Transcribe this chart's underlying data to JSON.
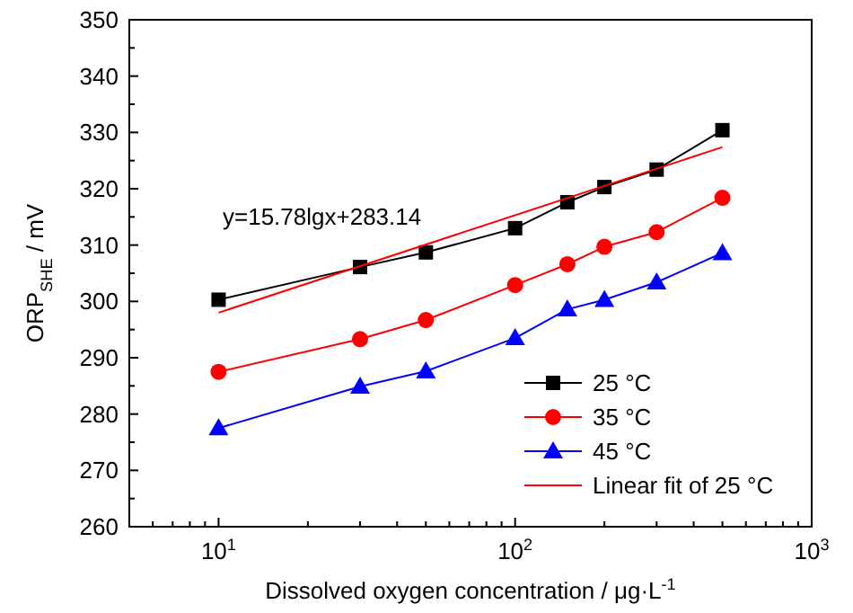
{
  "chart_data": {
    "type": "line",
    "xlabel": "Dissolved oxygen concentration / μg·L$^{-1}$",
    "ylabel": "ORP$_{SHE}$ / mV",
    "x": [
      10,
      30,
      50,
      100,
      150,
      200,
      300,
      500
    ],
    "series": [
      {
        "name": "25 °C",
        "color": "#000000",
        "marker": "square",
        "values": [
          300.3,
          306.1,
          308.7,
          313,
          317.6,
          320.3,
          323.4,
          330.4
        ]
      },
      {
        "name": "35 °C",
        "color": "#ff0000",
        "marker": "circle",
        "values": [
          287.5,
          293.3,
          296.7,
          302.9,
          306.6,
          309.7,
          312.3,
          318.4
        ]
      },
      {
        "name": "45 °C",
        "color": "#0000ff",
        "marker": "triangle",
        "values": [
          277.5,
          284.9,
          287.6,
          293.5,
          298.6,
          300.3,
          303.4,
          308.6
        ]
      },
      {
        "name": "Linear fit of 25 °C",
        "color": "#ff0000",
        "marker": "none",
        "x": [
          10,
          500
        ],
        "values": [
          298,
          327.4
        ]
      }
    ],
    "log": "x",
    "xlim": [
      5,
      1000
    ],
    "xticks": [
      {
        "value": 6,
        "label": null
      },
      {
        "value": 7,
        "label": null
      },
      {
        "value": 8,
        "label": null
      },
      {
        "value": 9,
        "label": null
      },
      {
        "value": 10,
        "label": "10$^{1}$"
      },
      {
        "value": 20,
        "label": null
      },
      {
        "value": 30,
        "label": null
      },
      {
        "value": 40,
        "label": null
      },
      {
        "value": 50,
        "label": null
      },
      {
        "value": 60,
        "label": null
      },
      {
        "value": 70,
        "label": null
      },
      {
        "value": 80,
        "label": null
      },
      {
        "value": 90,
        "label": null
      },
      {
        "value": 100,
        "label": "10$^{2}$"
      },
      {
        "value": 200,
        "label": null
      },
      {
        "value": 300,
        "label": null
      },
      {
        "value": 400,
        "label": null
      },
      {
        "value": 500,
        "label": null
      },
      {
        "value": 600,
        "label": null
      },
      {
        "value": 700,
        "label": null
      },
      {
        "value": 800,
        "label": null
      },
      {
        "value": 900,
        "label": null
      },
      {
        "value": 1000,
        "label": "10$^{3}$"
      }
    ],
    "ylim": [
      260,
      350
    ],
    "yticks": [
      260,
      {
        "value": 265,
        "label": null
      },
      270,
      {
        "value": 275,
        "label": null
      },
      280,
      {
        "value": 285,
        "label": null
      },
      290,
      {
        "value": 295,
        "label": null
      },
      300,
      {
        "value": 305,
        "label": null
      },
      310,
      {
        "value": 315,
        "label": null
      },
      320,
      {
        "value": 325,
        "label": null
      },
      330,
      {
        "value": 335,
        "label": null
      },
      340,
      {
        "value": 345,
        "label": null
      },
      350
    ],
    "annotations": [
      "y=15.78lgx+283.14"
    ],
    "grid": false,
    "legend": "bottom right",
    "line_style": "solid"
  }
}
